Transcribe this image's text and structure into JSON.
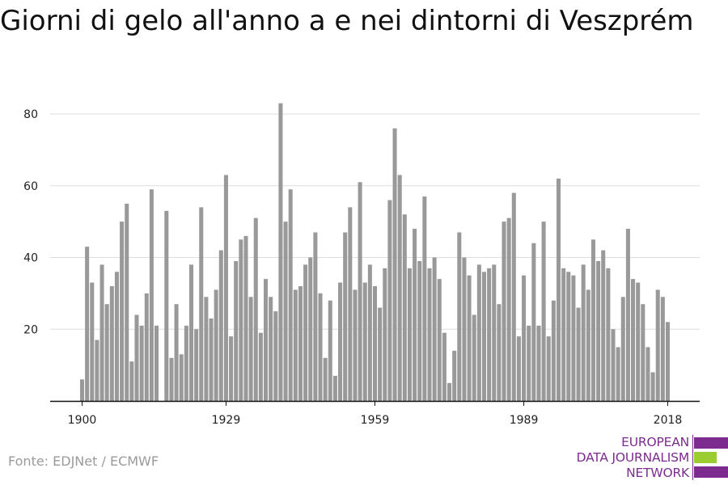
{
  "colors": {
    "bar": "#999999",
    "grid": "#dddddd",
    "axis": "#111111",
    "logo_purple": "#7b2c8e",
    "logo_green": "#9acd32",
    "source_text": "#9a9a9a"
  },
  "source": "Fonte: EDJNet / ECMWF",
  "logo": {
    "lines": [
      "EUROPEAN",
      "DATA JOURNALISM",
      "NETWORK"
    ]
  },
  "chart_data": {
    "type": "bar",
    "title": "Giorni di gelo all'anno a e nei dintorni di Veszprém",
    "xlabel": "",
    "ylabel": "",
    "grid": true,
    "legend": "none",
    "x_ticks": [
      1900,
      1929,
      1959,
      1989,
      2018
    ],
    "y_ticks": [
      20,
      40,
      60,
      80
    ],
    "ylim": [
      0,
      87
    ],
    "x": [
      1900,
      1901,
      1902,
      1903,
      1904,
      1905,
      1906,
      1907,
      1908,
      1909,
      1910,
      1911,
      1912,
      1913,
      1914,
      1915,
      1916,
      1917,
      1918,
      1919,
      1920,
      1921,
      1922,
      1923,
      1924,
      1925,
      1926,
      1927,
      1928,
      1929,
      1930,
      1931,
      1932,
      1933,
      1934,
      1935,
      1936,
      1937,
      1938,
      1939,
      1940,
      1941,
      1942,
      1943,
      1944,
      1945,
      1946,
      1947,
      1948,
      1949,
      1950,
      1951,
      1952,
      1953,
      1954,
      1955,
      1956,
      1957,
      1958,
      1959,
      1960,
      1961,
      1962,
      1963,
      1964,
      1965,
      1966,
      1967,
      1968,
      1969,
      1970,
      1971,
      1972,
      1973,
      1974,
      1975,
      1976,
      1977,
      1978,
      1979,
      1980,
      1981,
      1982,
      1983,
      1984,
      1985,
      1986,
      1987,
      1988,
      1989,
      1990,
      1991,
      1992,
      1993,
      1994,
      1995,
      1996,
      1997,
      1998,
      1999,
      2000,
      2001,
      2002,
      2003,
      2004,
      2005,
      2006,
      2007,
      2008,
      2009,
      2010,
      2011,
      2012,
      2013,
      2014,
      2015,
      2016,
      2017,
      2018,
      2019
    ],
    "values": [
      6,
      43,
      33,
      17,
      38,
      27,
      32,
      36,
      50,
      55,
      11,
      24,
      21,
      30,
      59,
      21,
      0,
      53,
      12,
      27,
      13,
      21,
      38,
      20,
      54,
      29,
      23,
      31,
      42,
      63,
      18,
      39,
      45,
      46,
      29,
      51,
      19,
      34,
      29,
      25,
      83,
      50,
      59,
      31,
      32,
      38,
      40,
      47,
      30,
      12,
      28,
      7,
      33,
      47,
      54,
      31,
      61,
      33,
      38,
      32,
      26,
      37,
      56,
      76,
      63,
      52,
      37,
      48,
      39,
      57,
      37,
      40,
      34,
      19,
      5,
      14,
      47,
      40,
      35,
      24,
      38,
      36,
      37,
      38,
      27,
      50,
      51,
      58,
      18,
      35,
      21,
      44,
      21,
      50,
      18,
      28,
      62,
      37,
      36,
      35,
      26,
      38,
      31,
      45,
      39,
      42,
      37,
      20,
      15,
      29,
      48,
      34,
      33,
      27,
      15,
      8,
      31,
      29,
      22,
      0
    ]
  }
}
